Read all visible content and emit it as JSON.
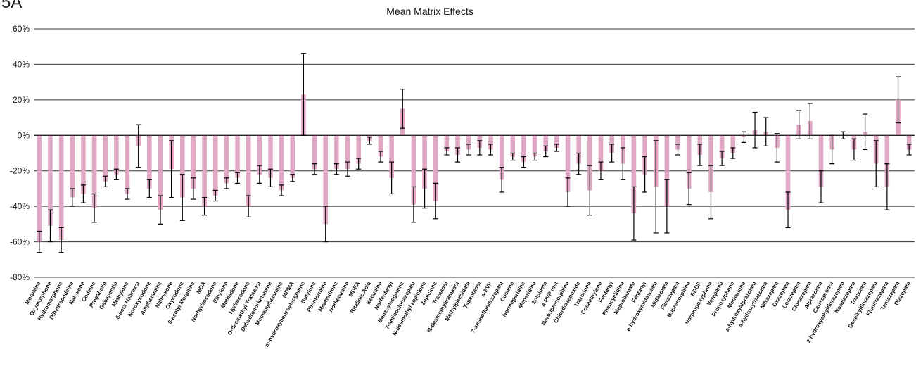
{
  "panel_label": "5A",
  "chart_data": {
    "type": "bar",
    "title": "Mean Matrix Effects",
    "xlabel": "",
    "ylabel": "",
    "ylim": [
      -80,
      60
    ],
    "yticks": [
      60,
      40,
      20,
      0,
      -20,
      -40,
      -60,
      -80
    ],
    "ytick_labels": [
      "60%",
      "40%",
      "20%",
      "0%",
      "-20%",
      "-40%",
      "-60%",
      "-80%"
    ],
    "grid": true,
    "bar_color": "#e0a8c4",
    "error_bar_color": "#000000",
    "categories": [
      "Morphine",
      "Oxymorphone",
      "Hydromorphone",
      "Dihydrocodeine",
      "Naloxone",
      "Codeine",
      "Pregabalin",
      "Gabapentin",
      "Methylone",
      "6-beta Naltrexol",
      "Noroxycodone",
      "Amphetamine",
      "Naltrexone",
      "Oxycodone",
      "6-acetyl Morphine",
      "MDA",
      "Norhydrocodone",
      "Ethylone",
      "Methadone",
      "Hydrocodone",
      "O-desmethyl Tramadol",
      "Dehydronorketamine",
      "Methamphetamine",
      "MDMA",
      "m-hydroxybenzoylecgonine",
      "Butylone",
      "Phentermine",
      "Mephedrone",
      "Norketamine",
      "MDEA",
      "Ritalinic Acid",
      "Ketamine",
      "Norfentanyl",
      "Benzoylecgonine",
      "7-aminoclonazepam",
      "N-desmethyl zopiclone",
      "Zopiclone",
      "Tramadol",
      "N-desmethyltramadol",
      "Methylphenidate",
      "Tapentadol",
      "a-PVP",
      "7-aminoflunitrazepam",
      "Cocaine",
      "Normeperidine",
      "Meperidine",
      "Zolpidem",
      "a-PVP met",
      "Norbuprenorphine",
      "Chlordiazepoxide",
      "Trazodone",
      "Cocaethylene",
      "Fentanyl",
      "Phencyclidine",
      "Meprobamate",
      "Fentanyl",
      "a-hydroxymidazolam",
      "Midazolam",
      "Flurazepam",
      "Buprenorphine",
      "EDDP",
      "Norpropoxyphene",
      "Verapamil",
      "Propoxyphene",
      "Methadone",
      "a-hydroxyalprazolam",
      "a-hydroxytriazolam",
      "Nitrazepam",
      "Oxazepam",
      "Lorazepam",
      "Clonazepam",
      "Alprazolam",
      "Carisoprodol",
      "2-hydroxyethylflurazepam",
      "Nordiazepam",
      "Triazolam",
      "Desalkylflurazepam",
      "Flunitrazepam",
      "Temazepam",
      "Diazepam"
    ],
    "series": [
      {
        "values": [
          -60,
          -51,
          -59,
          -35,
          -33,
          -41,
          -26,
          -22,
          -33,
          -6,
          -30,
          -42,
          -19,
          -35,
          -30,
          -40,
          -34,
          -27,
          -24,
          -40,
          -22,
          -24,
          -31,
          -24,
          23,
          -19,
          -50,
          -19,
          -19,
          -16,
          -3,
          -12,
          -24,
          15,
          -39,
          -30,
          -37,
          -9,
          -11,
          -8,
          -7,
          -8,
          -25,
          -12,
          -15,
          -12,
          -9,
          -7,
          -32,
          -16,
          -31,
          -20,
          -10,
          -16,
          -44,
          -22,
          -29,
          -40,
          -8,
          -30,
          -11,
          -32,
          -13,
          -10,
          -1,
          3,
          2,
          -7,
          -42,
          6,
          8,
          -29,
          -8,
          0,
          -8,
          2,
          -16,
          -29,
          20,
          -8
        ],
        "errors": [
          6,
          9,
          7,
          5,
          5,
          8,
          3,
          3,
          3,
          12,
          5,
          8,
          16,
          13,
          6,
          5,
          3,
          3,
          3,
          6,
          5,
          5,
          3,
          2,
          23,
          3,
          10,
          3,
          4,
          3,
          2,
          3,
          9,
          11,
          10,
          11,
          10,
          2,
          4,
          3,
          4,
          3,
          7,
          2,
          3,
          2,
          3,
          2,
          8,
          6,
          14,
          5,
          5,
          9,
          15,
          10,
          26,
          15,
          3,
          9,
          6,
          15,
          4,
          3,
          3,
          10,
          8,
          8,
          10,
          8,
          10,
          9,
          8,
          2,
          6,
          10,
          13,
          13,
          13,
          3
        ]
      }
    ]
  }
}
